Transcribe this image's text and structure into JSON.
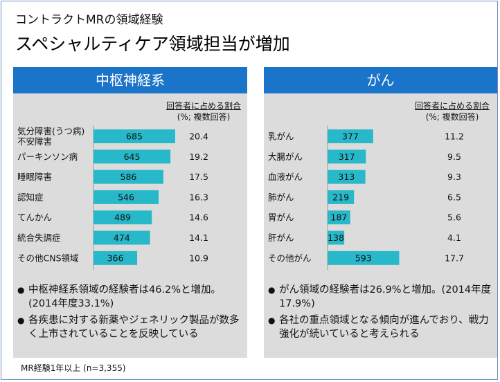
{
  "subtitle": "コントラクトMRの領域経験",
  "title": "スペシャルティケア領域担当が増加",
  "footnote": "MR経験1年以上 (n=3,355)",
  "colors": {
    "header_bg": "#1a74c9",
    "bar": "#27b8c9",
    "panel_bg": "#dcdcdc"
  },
  "chart_data": [
    {
      "type": "bar",
      "orientation": "horizontal",
      "title": "中枢神経系",
      "column_header": [
        "回答者に占める割合",
        "(%; 複数回答)"
      ],
      "categories": [
        "気分障害(うつ病)\n不安障害",
        "パーキンソン病",
        "睡眠障害",
        "認知症",
        "てんかん",
        "統合失調症",
        "その他CNS領域"
      ],
      "values": [
        685,
        645,
        586,
        546,
        489,
        474,
        366
      ],
      "percentages": [
        "20.4",
        "19.2",
        "17.5",
        "16.3",
        "14.6",
        "14.1",
        "10.9"
      ],
      "notes": [
        "中枢神経系領域の経験者は46.2%と増加。(2014年度33.1%)",
        "各疾患に対する新薬やジェネリック製品が数多く上市されていることを反映している"
      ]
    },
    {
      "type": "bar",
      "orientation": "horizontal",
      "title": "がん",
      "column_header": [
        "回答者に占める割合",
        "(%; 複数回答)"
      ],
      "categories": [
        "乳がん",
        "大腸がん",
        "血液がん",
        "肺がん",
        "胃がん",
        "肝がん",
        "その他がん"
      ],
      "values": [
        377,
        317,
        313,
        219,
        187,
        138,
        593
      ],
      "percentages": [
        "11.2",
        "9.5",
        "9.3",
        "6.5",
        "5.6",
        "4.1",
        "17.7"
      ],
      "notes": [
        "がん領域の経験者は26.9%と増加。(2014年度17.9%)",
        "各社の重点領域となる傾向が進んでおり、戦力強化が続いていると考えられる"
      ]
    }
  ]
}
